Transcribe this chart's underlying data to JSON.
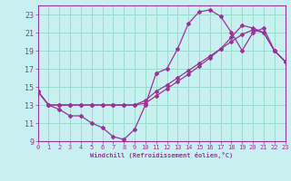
{
  "xlabel": "Windchill (Refroidissement éolien,°C)",
  "bg_color": "#c8f0f0",
  "grid_color": "#99ddcc",
  "line_color": "#993399",
  "xlim": [
    0,
    23
  ],
  "ylim": [
    9,
    24
  ],
  "xticks": [
    0,
    1,
    2,
    3,
    4,
    5,
    6,
    7,
    8,
    9,
    10,
    11,
    12,
    13,
    14,
    15,
    16,
    17,
    18,
    19,
    20,
    21,
    22,
    23
  ],
  "yticks": [
    9,
    11,
    13,
    15,
    17,
    19,
    21,
    23
  ],
  "line1_x": [
    0,
    1,
    2,
    3,
    4,
    5,
    6,
    7,
    8,
    9,
    10,
    11,
    12,
    13,
    14,
    15,
    16,
    17,
    18,
    19,
    20,
    21,
    22,
    23
  ],
  "line1_y": [
    14.5,
    13.0,
    12.5,
    11.8,
    11.8,
    11.0,
    10.5,
    9.5,
    9.2,
    10.3,
    13.0,
    16.5,
    17.0,
    19.2,
    22.0,
    23.3,
    23.5,
    22.8,
    21.0,
    19.0,
    21.0,
    21.5,
    19.0,
    17.8
  ],
  "line2_x": [
    0,
    1,
    2,
    3,
    4,
    5,
    6,
    7,
    8,
    9,
    10,
    11,
    12,
    13,
    14,
    15,
    16,
    17,
    18,
    19,
    20,
    21,
    22,
    23
  ],
  "line2_y": [
    14.5,
    13.0,
    13.0,
    13.0,
    13.0,
    13.0,
    13.0,
    13.0,
    13.0,
    13.0,
    13.5,
    14.5,
    15.2,
    16.0,
    16.8,
    17.6,
    18.4,
    19.2,
    20.0,
    20.8,
    21.3,
    21.0,
    19.0,
    17.8
  ],
  "line3_x": [
    0,
    1,
    2,
    3,
    4,
    5,
    6,
    7,
    8,
    9,
    10,
    11,
    12,
    13,
    14,
    15,
    16,
    17,
    18,
    19,
    20,
    21,
    22,
    23
  ],
  "line3_y": [
    14.5,
    13.0,
    13.0,
    13.0,
    13.0,
    13.0,
    13.0,
    13.0,
    13.0,
    13.0,
    13.2,
    14.0,
    14.8,
    15.6,
    16.4,
    17.3,
    18.2,
    19.2,
    20.5,
    21.8,
    21.5,
    21.0,
    19.0,
    17.8
  ]
}
